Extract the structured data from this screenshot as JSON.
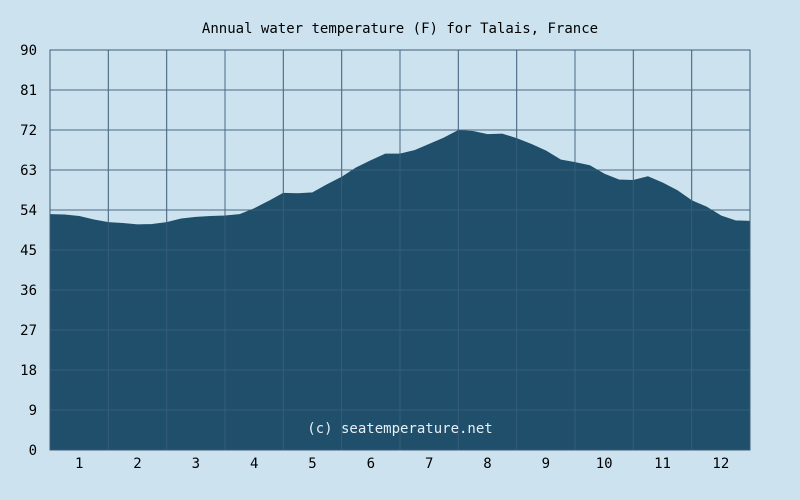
{
  "chart_data": {
    "type": "area",
    "title": "Annual water temperature (F) for Talais, France",
    "xlabel": "",
    "ylabel": "",
    "ylim": [
      0,
      90
    ],
    "xlim": [
      0.5,
      12.5
    ],
    "grid": true,
    "y_ticks": [
      "0",
      "9",
      "18",
      "27",
      "36",
      "45",
      "54",
      "63",
      "72",
      "81",
      "90"
    ],
    "x_ticks": [
      "1",
      "2",
      "3",
      "4",
      "5",
      "6",
      "7",
      "8",
      "9",
      "10",
      "11",
      "12"
    ],
    "watermark": "(c) seatemperature.net",
    "colors": {
      "background": "#cce3ef",
      "fill": "#1f4f6b",
      "grid": "#4a6a84",
      "frame": "#3d5d75"
    },
    "series": [
      {
        "x": [
          0.5,
          0.75,
          1.0,
          1.25,
          1.5,
          1.75,
          2.0,
          2.25,
          2.5,
          2.75,
          3.0,
          3.25,
          3.5,
          3.75,
          4.0,
          4.25,
          4.5,
          4.75,
          5.0,
          5.25,
          5.5,
          5.75,
          6.0,
          6.25,
          6.5,
          6.75,
          7.0,
          7.25,
          7.5,
          7.75,
          8.0,
          8.25,
          8.5,
          8.75,
          9.0,
          9.25,
          9.5,
          9.75,
          10.0,
          10.25,
          10.5,
          10.75,
          11.0,
          11.25,
          11.5,
          11.75,
          12.0,
          12.25,
          12.5
        ],
        "y": [
          52.9,
          52.8,
          52.5,
          51.7,
          51.1,
          50.9,
          50.6,
          50.7,
          51.1,
          51.9,
          52.3,
          52.5,
          52.6,
          52.9,
          54.2,
          55.9,
          57.7,
          57.6,
          57.8,
          59.6,
          61.3,
          63.4,
          65.0,
          66.5,
          66.5,
          67.3,
          68.7,
          70.1,
          71.8,
          71.6,
          70.9,
          71.0,
          70.0,
          68.7,
          67.2,
          65.2,
          64.6,
          63.9,
          62.0,
          60.7,
          60.6,
          61.4,
          60.0,
          58.3,
          56.0,
          54.6,
          52.6,
          51.5,
          51.4
        ]
      }
    ]
  }
}
